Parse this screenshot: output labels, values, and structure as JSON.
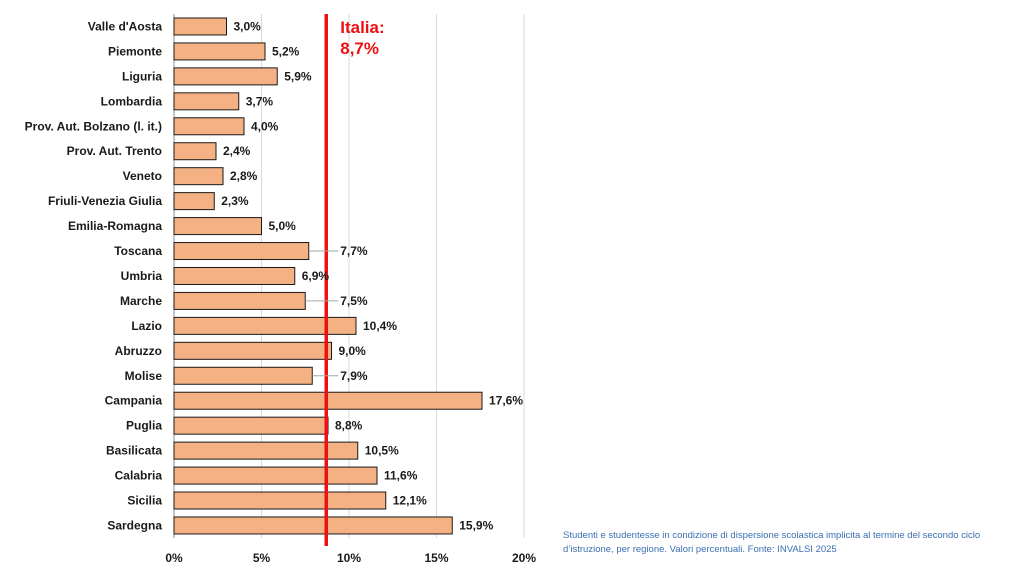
{
  "chart_data": {
    "type": "bar",
    "orientation": "horizontal",
    "categories": [
      "Valle d'Aosta",
      "Piemonte",
      "Liguria",
      "Lombardia",
      "Prov. Aut. Bolzano (l. it.)",
      "Prov. Aut. Trento",
      "Veneto",
      "Friuli-Venezia Giulia",
      "Emilia-Romagna",
      "Toscana",
      "Umbria",
      "Marche",
      "Lazio",
      "Abruzzo",
      "Molise",
      "Campania",
      "Puglia",
      "Basilicata",
      "Calabria",
      "Sicilia",
      "Sardegna"
    ],
    "values": [
      3.0,
      5.2,
      5.9,
      3.7,
      4.0,
      2.4,
      2.8,
      2.3,
      5.0,
      7.7,
      6.9,
      7.5,
      10.4,
      9.0,
      7.9,
      17.6,
      8.8,
      10.5,
      11.6,
      12.1,
      15.9
    ],
    "value_labels": [
      "3,0%",
      "5,2%",
      "5,9%",
      "3,7%",
      "4,0%",
      "2,4%",
      "2,8%",
      "2,3%",
      "5,0%",
      "7,7%",
      "6,9%",
      "7,5%",
      "10,4%",
      "9,0%",
      "7,9%",
      "17,6%",
      "8,8%",
      "10,5%",
      "11,6%",
      "12,1%",
      "15,9%"
    ],
    "xlim": [
      0,
      20
    ],
    "x_ticks": [
      0,
      5,
      10,
      15,
      20
    ],
    "x_tick_labels": [
      "0%",
      "5%",
      "10%",
      "15%",
      "20%"
    ],
    "grid": "vertical",
    "bar_color": "#f4b183",
    "bar_edge_color": "#1a1a1a",
    "reference_line": {
      "value": 8.7,
      "label_line1": "Italia:",
      "label_line2": "8,7%",
      "color": "#ee1111"
    }
  },
  "caption": {
    "line1": "Studenti e studentesse in condizione di dispersione scolastica implicita al termine del secondo ciclo",
    "line2": "d’istruzione, per regione. Valori percentuali. Fonte: INVALSI 2025"
  }
}
